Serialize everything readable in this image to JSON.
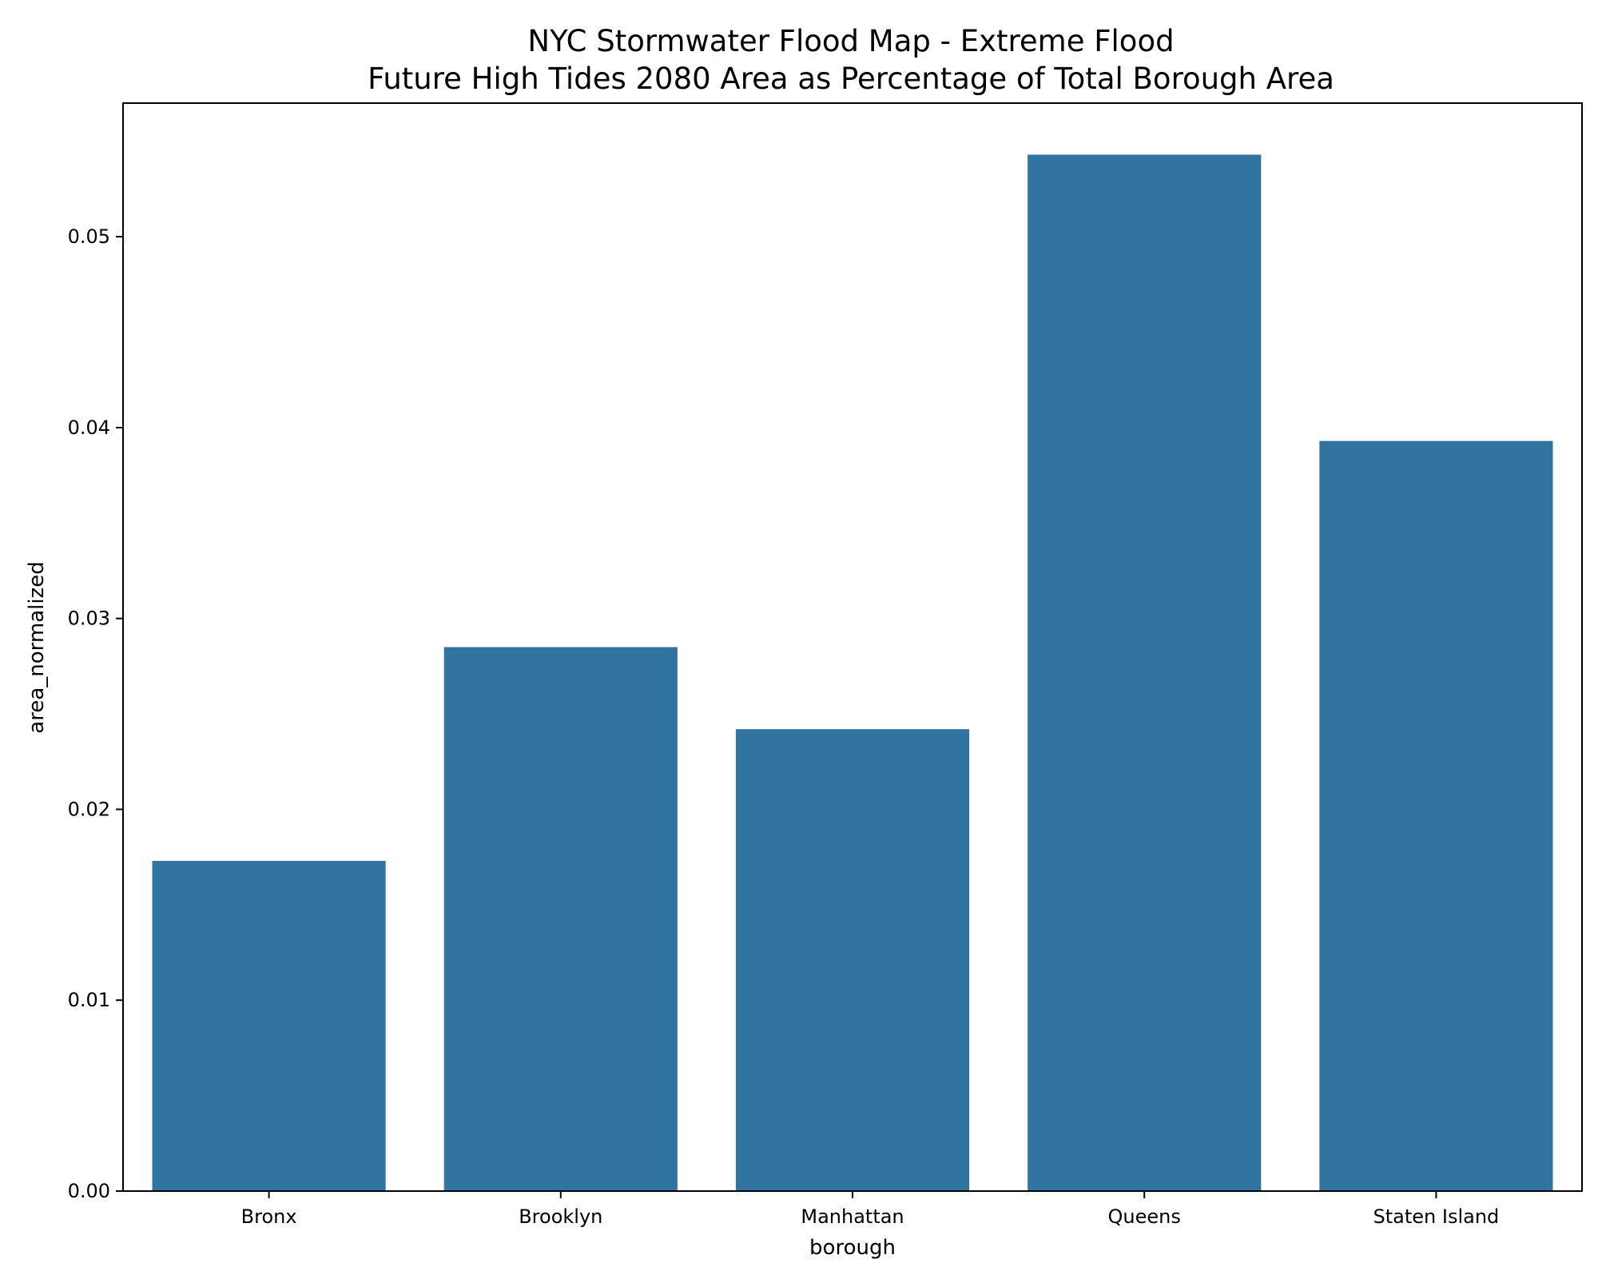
{
  "chart_data": {
    "type": "bar",
    "title": "NYC Stormwater Flood Map - Extreme Flood",
    "subtitle": "Future High Tides 2080 Area as Percentage of Total Borough Area",
    "xlabel": "borough",
    "ylabel": "area_normalized",
    "categories": [
      "Bronx",
      "Brooklyn",
      "Manhattan",
      "Queens",
      "Staten Island"
    ],
    "values": [
      0.0173,
      0.0285,
      0.0242,
      0.0543,
      0.0393
    ],
    "ylim": [
      0,
      0.057
    ],
    "yticks": [
      0.0,
      0.01,
      0.02,
      0.03,
      0.04,
      0.05
    ],
    "ytick_labels": [
      "0.00",
      "0.01",
      "0.02",
      "0.03",
      "0.04",
      "0.05"
    ],
    "grid": false,
    "bar_color": "#3274a1"
  }
}
